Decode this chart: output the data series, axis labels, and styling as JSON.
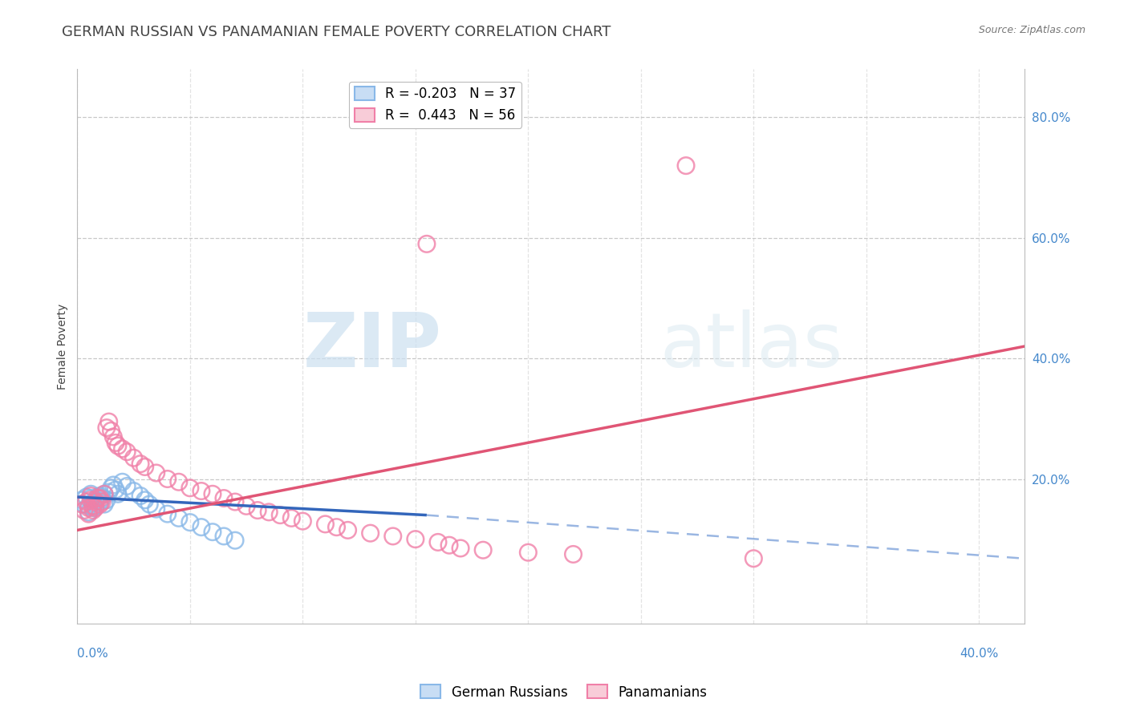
{
  "title": "GERMAN RUSSIAN VS PANAMANIAN FEMALE POVERTY CORRELATION CHART",
  "source": "Source: ZipAtlas.com",
  "ylabel": "Female Poverty",
  "ytick_labels": [
    "80.0%",
    "60.0%",
    "40.0%",
    "20.0%"
  ],
  "ytick_values": [
    0.8,
    0.6,
    0.4,
    0.2
  ],
  "xlim": [
    0.0,
    0.42
  ],
  "ylim": [
    -0.04,
    0.88
  ],
  "watermark_zip": "ZIP",
  "watermark_atlas": "atlas",
  "german_russian_color": "#89b8e8",
  "panamanian_color": "#f080a8",
  "german_russian_points": [
    [
      0.002,
      0.165
    ],
    [
      0.003,
      0.158
    ],
    [
      0.004,
      0.17
    ],
    [
      0.005,
      0.155
    ],
    [
      0.005,
      0.145
    ],
    [
      0.006,
      0.168
    ],
    [
      0.006,
      0.175
    ],
    [
      0.007,
      0.16
    ],
    [
      0.007,
      0.152
    ],
    [
      0.008,
      0.165
    ],
    [
      0.008,
      0.155
    ],
    [
      0.009,
      0.17
    ],
    [
      0.01,
      0.162
    ],
    [
      0.01,
      0.172
    ],
    [
      0.011,
      0.168
    ],
    [
      0.012,
      0.158
    ],
    [
      0.012,
      0.175
    ],
    [
      0.013,
      0.165
    ],
    [
      0.014,
      0.178
    ],
    [
      0.015,
      0.185
    ],
    [
      0.016,
      0.19
    ],
    [
      0.017,
      0.182
    ],
    [
      0.018,
      0.175
    ],
    [
      0.02,
      0.195
    ],
    [
      0.022,
      0.188
    ],
    [
      0.025,
      0.18
    ],
    [
      0.028,
      0.172
    ],
    [
      0.03,
      0.165
    ],
    [
      0.032,
      0.158
    ],
    [
      0.035,
      0.15
    ],
    [
      0.04,
      0.142
    ],
    [
      0.045,
      0.135
    ],
    [
      0.05,
      0.128
    ],
    [
      0.055,
      0.12
    ],
    [
      0.06,
      0.112
    ],
    [
      0.065,
      0.105
    ],
    [
      0.07,
      0.098
    ]
  ],
  "panamanian_points": [
    [
      0.002,
      0.158
    ],
    [
      0.003,
      0.148
    ],
    [
      0.004,
      0.162
    ],
    [
      0.005,
      0.152
    ],
    [
      0.005,
      0.142
    ],
    [
      0.006,
      0.165
    ],
    [
      0.006,
      0.172
    ],
    [
      0.007,
      0.155
    ],
    [
      0.007,
      0.148
    ],
    [
      0.008,
      0.162
    ],
    [
      0.008,
      0.152
    ],
    [
      0.009,
      0.168
    ],
    [
      0.01,
      0.158
    ],
    [
      0.01,
      0.168
    ],
    [
      0.011,
      0.162
    ],
    [
      0.012,
      0.175
    ],
    [
      0.013,
      0.285
    ],
    [
      0.014,
      0.295
    ],
    [
      0.015,
      0.28
    ],
    [
      0.016,
      0.27
    ],
    [
      0.017,
      0.26
    ],
    [
      0.018,
      0.255
    ],
    [
      0.02,
      0.25
    ],
    [
      0.022,
      0.245
    ],
    [
      0.025,
      0.235
    ],
    [
      0.028,
      0.225
    ],
    [
      0.03,
      0.22
    ],
    [
      0.035,
      0.21
    ],
    [
      0.04,
      0.2
    ],
    [
      0.045,
      0.195
    ],
    [
      0.05,
      0.185
    ],
    [
      0.055,
      0.18
    ],
    [
      0.06,
      0.175
    ],
    [
      0.065,
      0.168
    ],
    [
      0.07,
      0.162
    ],
    [
      0.075,
      0.155
    ],
    [
      0.08,
      0.148
    ],
    [
      0.085,
      0.145
    ],
    [
      0.09,
      0.14
    ],
    [
      0.095,
      0.135
    ],
    [
      0.1,
      0.13
    ],
    [
      0.11,
      0.125
    ],
    [
      0.115,
      0.12
    ],
    [
      0.12,
      0.115
    ],
    [
      0.13,
      0.11
    ],
    [
      0.14,
      0.105
    ],
    [
      0.15,
      0.1
    ],
    [
      0.155,
      0.59
    ],
    [
      0.16,
      0.095
    ],
    [
      0.165,
      0.09
    ],
    [
      0.17,
      0.085
    ],
    [
      0.18,
      0.082
    ],
    [
      0.2,
      0.078
    ],
    [
      0.22,
      0.075
    ],
    [
      0.27,
      0.72
    ],
    [
      0.3,
      0.068
    ]
  ],
  "german_russian_line_solid": {
    "x": [
      0.0,
      0.155
    ],
    "y": [
      0.17,
      0.14
    ]
  },
  "german_russian_line_dashed": {
    "x": [
      0.155,
      0.42
    ],
    "y": [
      0.14,
      0.068
    ]
  },
  "panamanian_line": {
    "x": [
      0.0,
      0.42
    ],
    "y": [
      0.115,
      0.42
    ]
  },
  "background_color": "#ffffff",
  "grid_color": "#c8c8c8",
  "title_color": "#444444",
  "axis_label_color": "#444444",
  "right_axis_color": "#4488cc",
  "title_fontsize": 13,
  "label_fontsize": 10,
  "tick_fontsize": 11
}
